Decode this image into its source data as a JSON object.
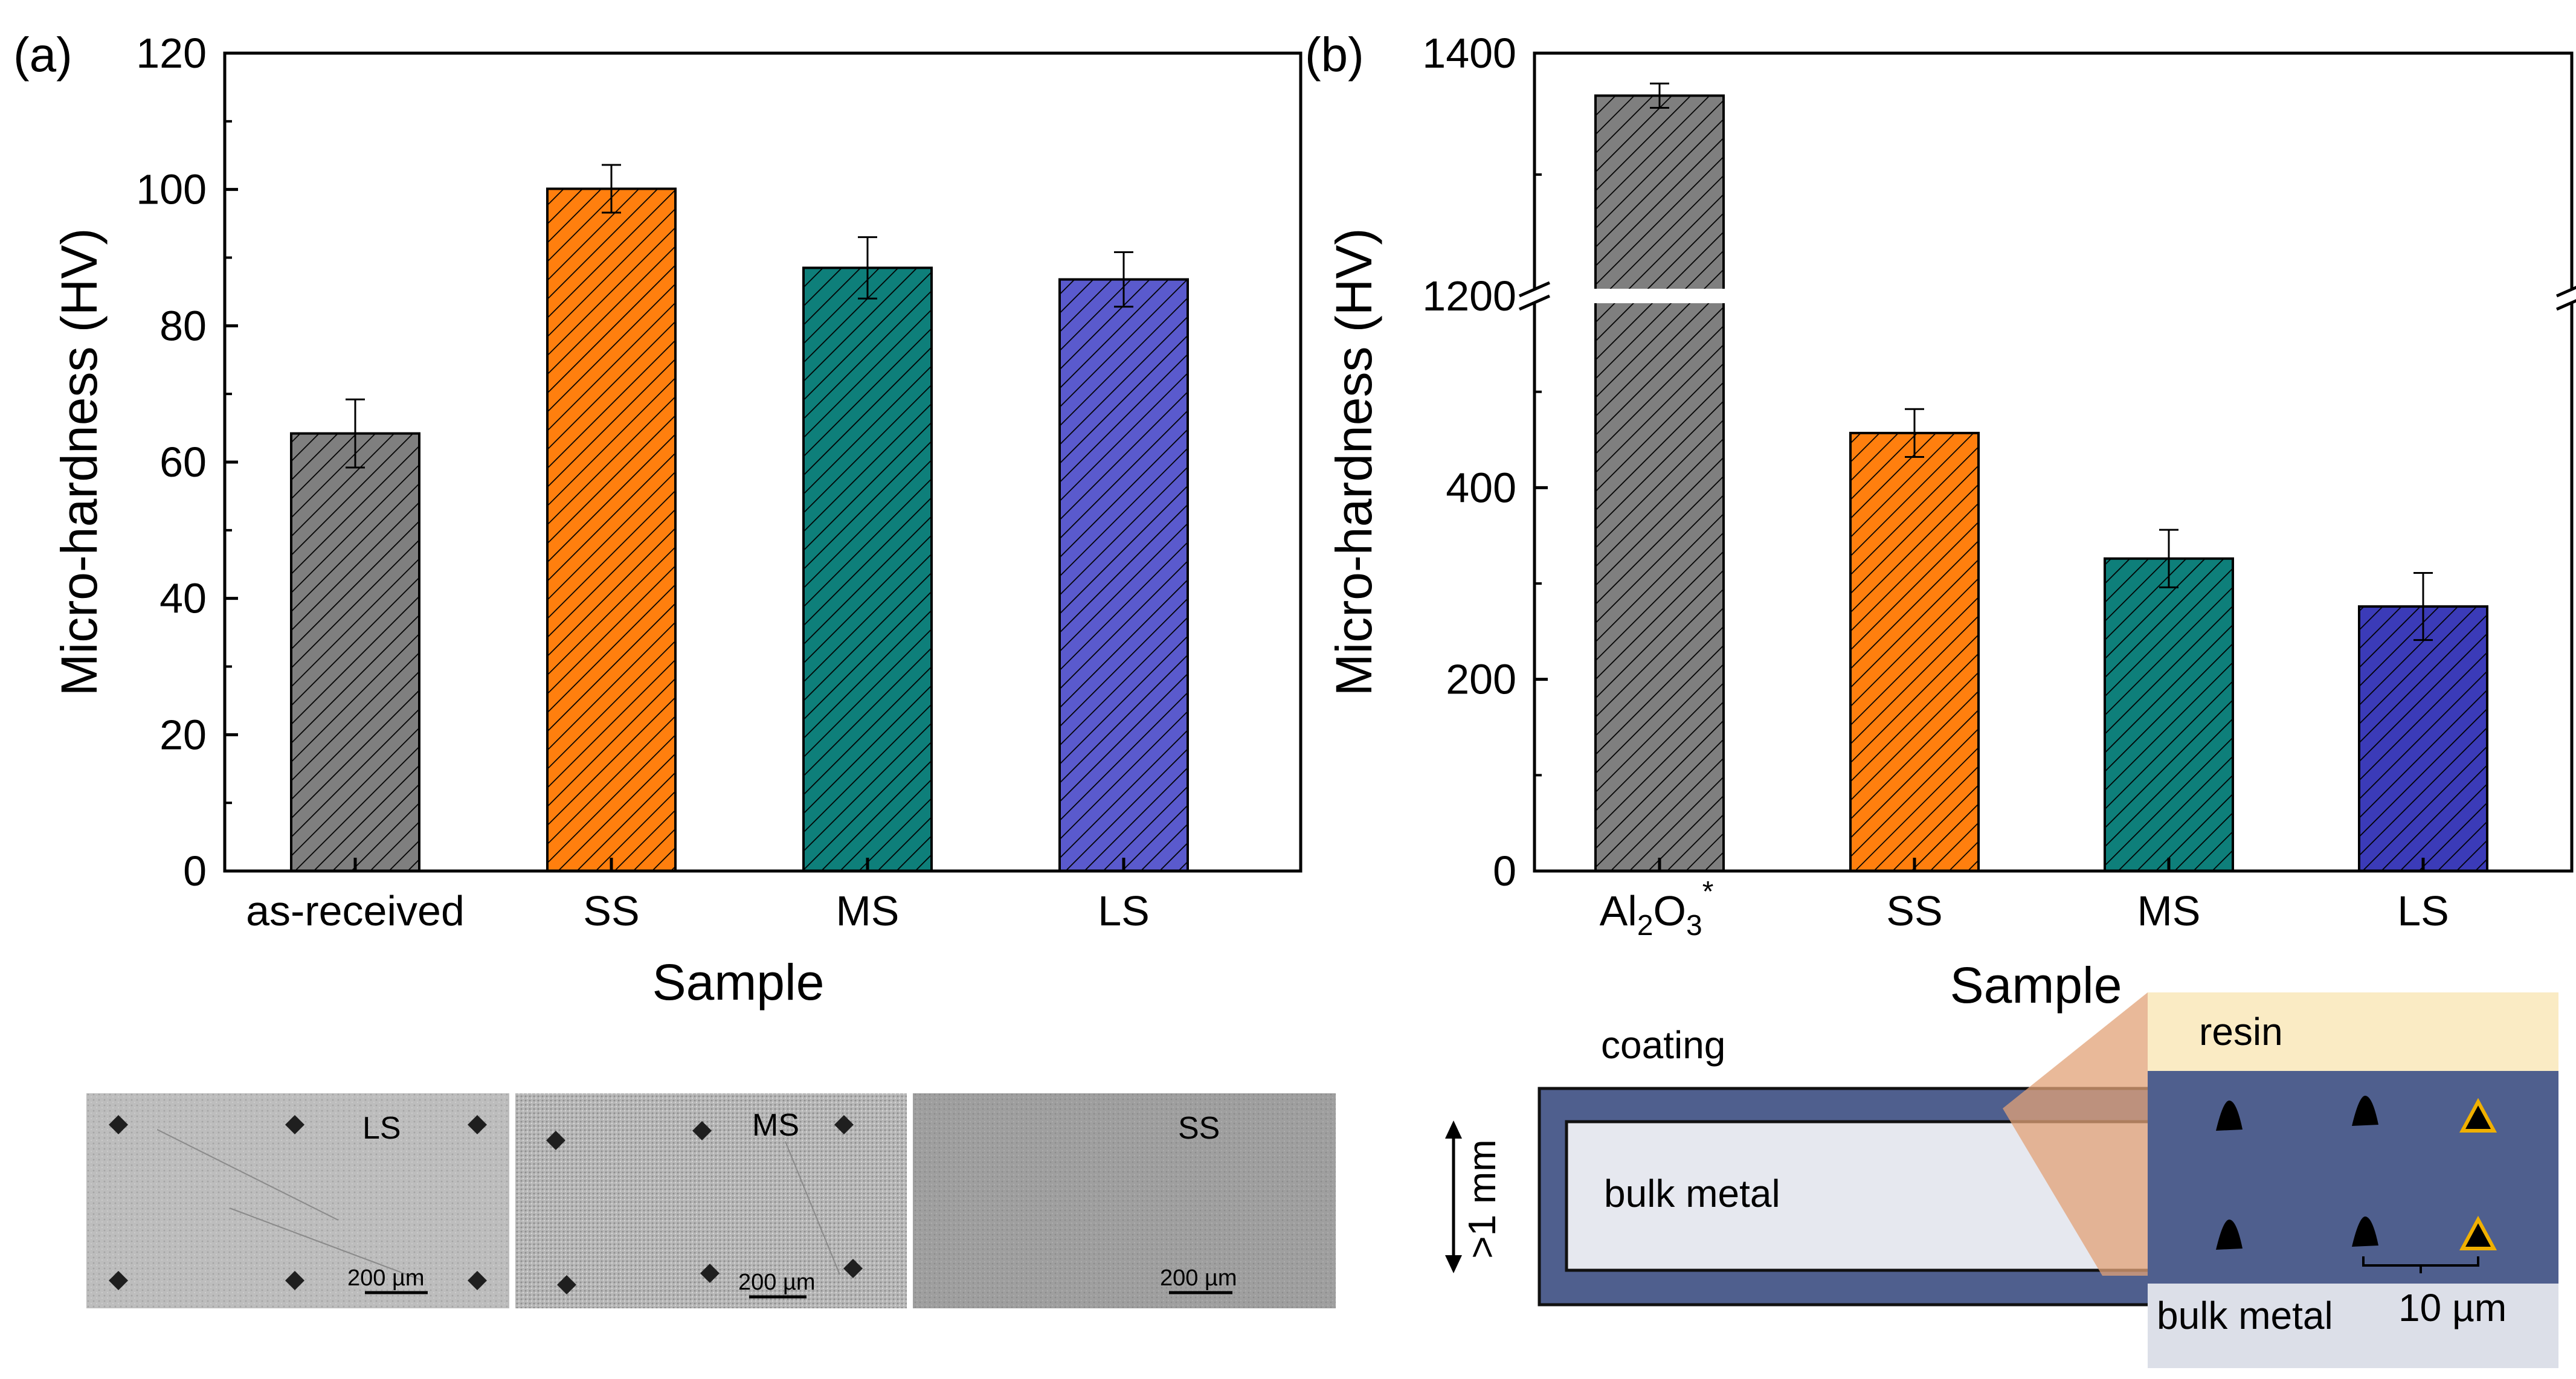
{
  "chart_data": [
    {
      "type": "bar",
      "panel_label": "(a)",
      "title": "",
      "xlabel": "Sample",
      "ylabel": "Micro-hardness (HV)",
      "ylim": [
        0,
        120
      ],
      "yticks": [
        "0",
        "20",
        "40",
        "60",
        "80",
        "100",
        "120"
      ],
      "categories": [
        "as-received",
        "SS",
        "MS",
        "LS"
      ],
      "values": [
        64.2,
        100.1,
        88.5,
        86.8
      ],
      "errors": [
        5.0,
        3.5,
        4.5,
        4.0
      ],
      "colors": [
        "#7f7f7f",
        "#ff7f0e",
        "#0e7f7a",
        "#5a5acd"
      ]
    },
    {
      "type": "bar",
      "panel_label": "(b)",
      "title": "",
      "xlabel": "Sample",
      "ylabel": "Micro-hardness (HV)",
      "axis_break": true,
      "ylim_lower": [
        0,
        600
      ],
      "ylim_upper": [
        1200,
        1400
      ],
      "yticks": [
        "0",
        "200",
        "400",
        "1200",
        "1400"
      ],
      "categories": [
        "Al2O3*",
        "SS",
        "MS",
        "LS"
      ],
      "category_label_al2o3": {
        "base1": "Al",
        "sub1": "2",
        "base2": "O",
        "sub2": "3",
        "sup": "*"
      },
      "values": [
        1365,
        457,
        326,
        276
      ],
      "errors": [
        10,
        25,
        30,
        35
      ],
      "colors": [
        "#7f7f7f",
        "#ff7f0e",
        "#0e7f7a",
        "#3b3bb8"
      ]
    }
  ],
  "micrographs": [
    {
      "label": "LS",
      "scale": "200 µm"
    },
    {
      "label": "MS",
      "scale": "200 µm"
    },
    {
      "label": "SS",
      "scale": "200 µm"
    }
  ],
  "schematic": {
    "coating": "coating",
    "bulk_metal": "bulk metal",
    "thickness": ">1 mm",
    "resin": "resin",
    "bulk_metal_zoom": "bulk metal",
    "spacing": "10 µm"
  }
}
